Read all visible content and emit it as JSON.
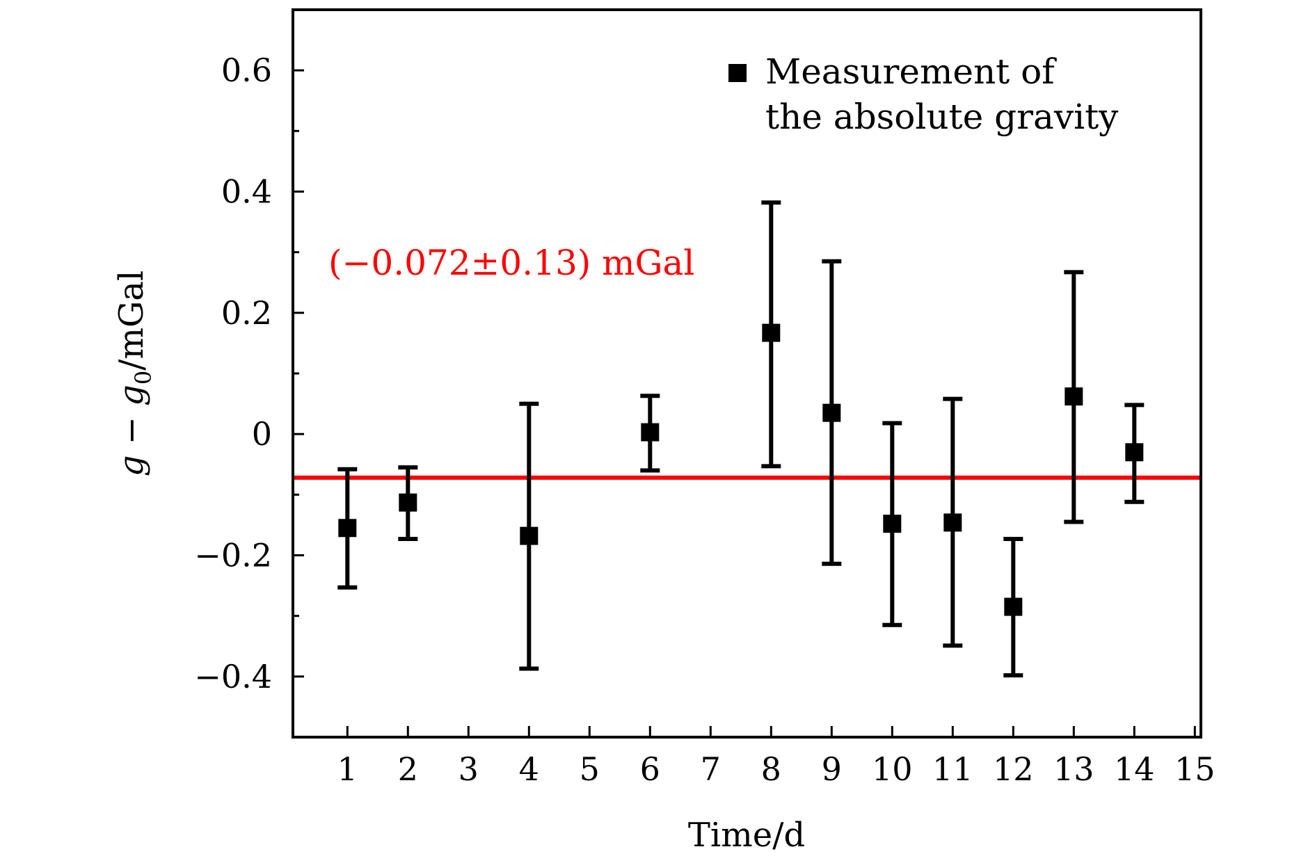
{
  "chart_data": {
    "type": "scatter",
    "title": "",
    "xlabel": "Time/d",
    "ylabel": "g−g₀/mGal",
    "xlim": [
      0.1,
      15.1
    ],
    "ylim": [
      -0.5,
      0.7
    ],
    "x_ticks": [
      1,
      2,
      3,
      4,
      5,
      6,
      7,
      8,
      9,
      10,
      11,
      12,
      13,
      14,
      15
    ],
    "y_ticks": [
      -0.4,
      -0.2,
      0,
      0.2,
      0.4,
      0.6
    ],
    "y_tick_labels": [
      "−0.4",
      "−0.2",
      "0",
      "0.2",
      "0.4",
      "0.6"
    ],
    "y_minor_step": 0.1,
    "grid": false,
    "legend_position": "top-right",
    "series": [
      {
        "name": "Measurement of the absolute gravity",
        "legend_lines": [
          "Measurement of",
          "the absolute gravity"
        ],
        "color": "#000000",
        "marker": "square",
        "points": [
          {
            "x": 1,
            "y": -0.155,
            "err_low": -0.253,
            "err_high": -0.058
          },
          {
            "x": 2,
            "y": -0.113,
            "err_low": -0.173,
            "err_high": -0.055
          },
          {
            "x": 4,
            "y": -0.168,
            "err_low": -0.387,
            "err_high": 0.05
          },
          {
            "x": 6,
            "y": 0.003,
            "err_low": -0.06,
            "err_high": 0.063
          },
          {
            "x": 8,
            "y": 0.167,
            "err_low": -0.053,
            "err_high": 0.382
          },
          {
            "x": 9,
            "y": 0.035,
            "err_low": -0.214,
            "err_high": 0.285
          },
          {
            "x": 10,
            "y": -0.148,
            "err_low": -0.315,
            "err_high": 0.018
          },
          {
            "x": 11,
            "y": -0.146,
            "err_low": -0.349,
            "err_high": 0.058
          },
          {
            "x": 12,
            "y": -0.285,
            "err_low": -0.398,
            "err_high": -0.173
          },
          {
            "x": 13,
            "y": 0.062,
            "err_low": -0.145,
            "err_high": 0.267
          },
          {
            "x": 14,
            "y": -0.03,
            "err_low": -0.112,
            "err_high": 0.048
          }
        ]
      }
    ],
    "reference_line": {
      "y": -0.072,
      "color": "#ff0000",
      "label": "(−0.072±0.13) mGal"
    }
  }
}
